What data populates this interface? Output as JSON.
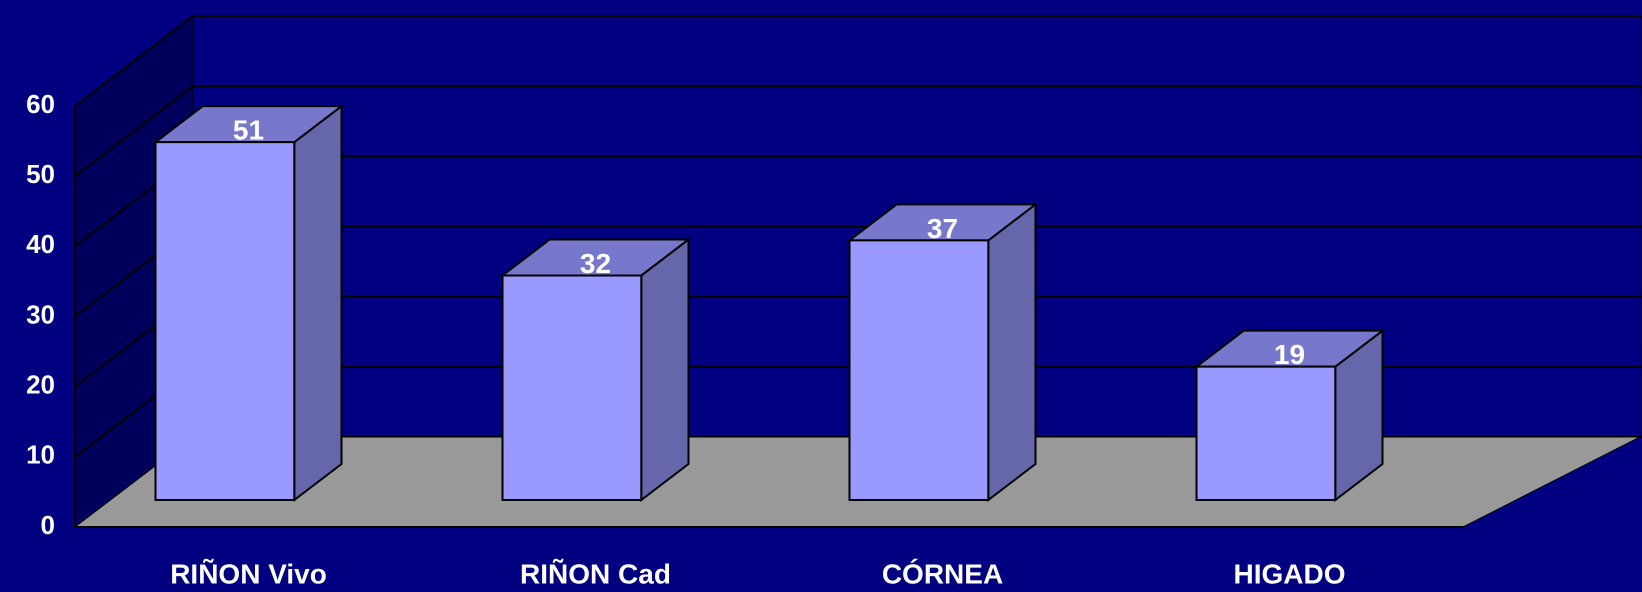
{
  "chart_data": {
    "type": "bar3d",
    "categories": [
      "RIÑON Vivo",
      "RIÑON Cad",
      "CÓRNEA",
      "HIGADO"
    ],
    "values": [
      51,
      32,
      37,
      19
    ],
    "color": "#9999ff",
    "ylim": [
      0,
      60
    ],
    "yticks": [
      0,
      10,
      20,
      30,
      40,
      50,
      60
    ],
    "grid": true
  }
}
